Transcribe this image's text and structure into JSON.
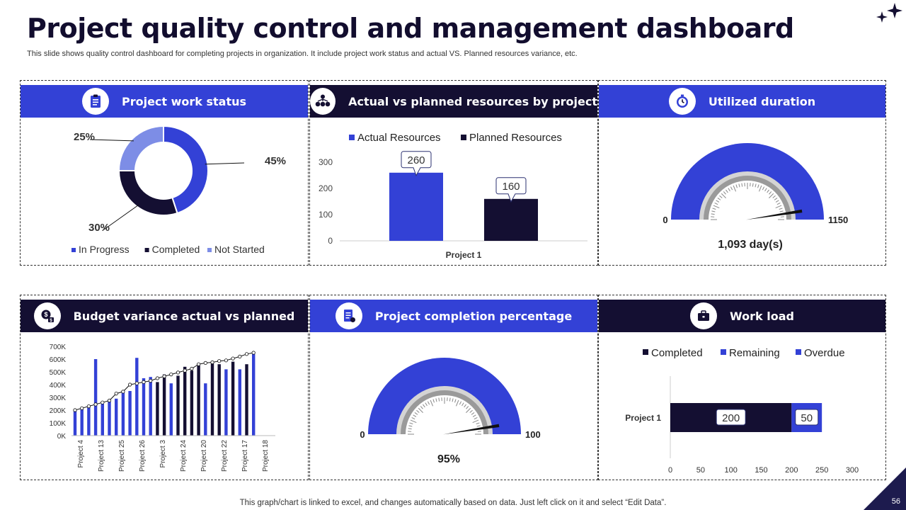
{
  "title": "Project quality control and management dashboard",
  "subtitle": "This slide shows quality control dashboard for completing projects in organization. It include project work status and actual VS. Planned resources variance, etc.",
  "footer": "This graph/chart is linked to excel, and changes automatically based on data. Just left click on it and select “Edit Data”.",
  "page_number": "56",
  "colors": {
    "blue": "#3341d6",
    "dark": "#140f32",
    "light_blue": "#7d8de6"
  },
  "panels": {
    "work_status": {
      "title": "Project work status",
      "icon": "clipboard-icon"
    },
    "resources": {
      "title": "Actual vs planned resources by project",
      "icon": "team-resources-icon"
    },
    "duration": {
      "title": "Utilized duration",
      "icon": "stopwatch-icon"
    },
    "budget": {
      "title": "Budget variance actual vs planned",
      "icon": "budget-icon"
    },
    "completion": {
      "title": "Project completion percentage",
      "icon": "document-icon"
    },
    "workload": {
      "title": "Work load",
      "icon": "briefcase-icon"
    }
  },
  "chart_data": [
    {
      "id": "work_status",
      "type": "pie",
      "donut": true,
      "categories": [
        "In Progress",
        "Completed",
        "Not Started"
      ],
      "values": [
        45,
        30,
        25
      ],
      "labels": [
        "45%",
        "30%",
        "25%"
      ],
      "colors": [
        "#3341d6",
        "#140f32",
        "#7d8de6"
      ],
      "legend": "bottom"
    },
    {
      "id": "resources",
      "type": "bar",
      "categories": [
        "Project 1"
      ],
      "series": [
        {
          "name": "Actual Resources",
          "values": [
            260
          ],
          "color": "#3341d6"
        },
        {
          "name": "Planned Resources",
          "values": [
            160
          ],
          "color": "#140f32"
        }
      ],
      "yticks": [
        "0",
        "100",
        "200",
        "300"
      ],
      "ylim": [
        0,
        300
      ],
      "legend": "top"
    },
    {
      "id": "duration",
      "type": "gauge",
      "min": 0,
      "max": 1150,
      "value": 1093,
      "min_label": "0",
      "max_label": "1150",
      "value_label": "1,093 day(s)"
    },
    {
      "id": "budget",
      "type": "bar",
      "categories": [
        "Project 4",
        "Project 13",
        "Project 25",
        "Project 26",
        "Project 3",
        "Project 24",
        "Project 20",
        "Project 22",
        "Project 17",
        "Project 18"
      ],
      "yticks": [
        "0K",
        "100K",
        "200K",
        "300K",
        "400K",
        "500K",
        "600K",
        "700K"
      ],
      "ylim": [
        0,
        700
      ],
      "bars": [
        {
          "value": 200,
          "color": "blue"
        },
        {
          "value": 210,
          "color": "blue"
        },
        {
          "value": 230,
          "color": "blue"
        },
        {
          "value": 600,
          "color": "blue"
        },
        {
          "value": 250,
          "color": "blue"
        },
        {
          "value": 270,
          "color": "blue"
        },
        {
          "value": 290,
          "color": "blue"
        },
        {
          "value": 340,
          "color": "blue"
        },
        {
          "value": 350,
          "color": "blue"
        },
        {
          "value": 610,
          "color": "blue"
        },
        {
          "value": 450,
          "color": "blue"
        },
        {
          "value": 460,
          "color": "blue"
        },
        {
          "value": 420,
          "color": "dark"
        },
        {
          "value": 480,
          "color": "dark"
        },
        {
          "value": 410,
          "color": "blue"
        },
        {
          "value": 470,
          "color": "dark"
        },
        {
          "value": 540,
          "color": "dark"
        },
        {
          "value": 510,
          "color": "dark"
        },
        {
          "value": 560,
          "color": "dark"
        },
        {
          "value": 410,
          "color": "blue"
        },
        {
          "value": 580,
          "color": "dark"
        },
        {
          "value": 560,
          "color": "dark"
        },
        {
          "value": 520,
          "color": "blue"
        },
        {
          "value": 580,
          "color": "dark"
        },
        {
          "value": 520,
          "color": "blue"
        },
        {
          "value": 560,
          "color": "dark"
        },
        {
          "value": 640,
          "color": "blue"
        }
      ],
      "line": [
        200,
        215,
        230,
        245,
        260,
        275,
        330,
        345,
        400,
        410,
        420,
        430,
        450,
        465,
        480,
        495,
        510,
        525,
        560,
        570,
        575,
        585,
        590,
        605,
        620,
        640,
        650
      ]
    },
    {
      "id": "completion",
      "type": "gauge",
      "min": 0,
      "max": 100,
      "value": 95,
      "min_label": "0",
      "max_label": "100",
      "value_label": "95%"
    },
    {
      "id": "workload",
      "type": "bar",
      "orientation": "horizontal",
      "stacked": true,
      "categories": [
        "Project 1"
      ],
      "series": [
        {
          "name": "Completed",
          "values": [
            200
          ],
          "color": "#140f32"
        },
        {
          "name": "Remaining",
          "values": [
            50
          ],
          "color": "#3341d6"
        },
        {
          "name": "Overdue",
          "values": [
            0
          ],
          "color": "#3341d6"
        }
      ],
      "data_labels": [
        "200",
        "50"
      ],
      "xticks": [
        "0",
        "50",
        "100",
        "150",
        "200",
        "250",
        "300"
      ],
      "xlim": [
        0,
        300
      ],
      "legend": "top"
    }
  ]
}
